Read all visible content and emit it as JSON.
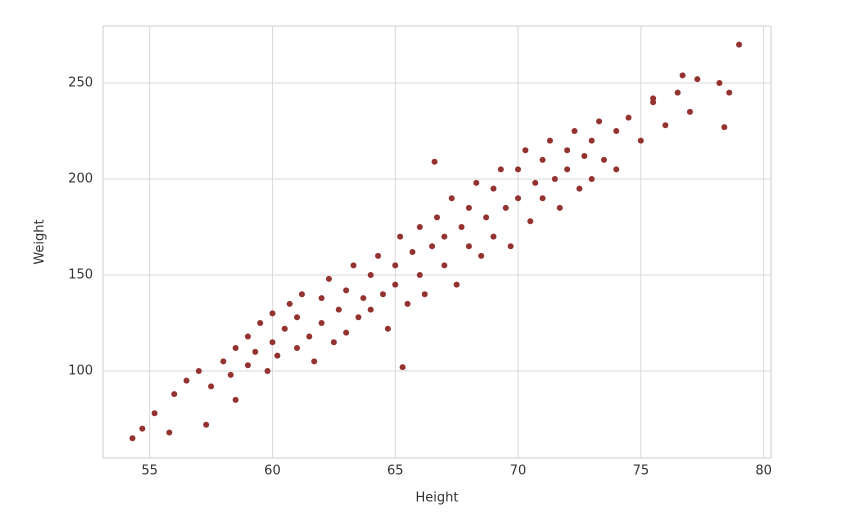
{
  "chart_data": {
    "type": "scatter",
    "x_label": "Height",
    "y_label": "Weight",
    "color": "#943230",
    "grid": true,
    "xlim": [
      53.1,
      80.3
    ],
    "ylim": [
      54.7,
      279.7
    ],
    "xticks": [
      55,
      60,
      65,
      70,
      75,
      80
    ],
    "yticks": [
      100,
      150,
      200,
      250
    ],
    "x": [
      56.5,
      57,
      57.5,
      58,
      58.3,
      58.5,
      59,
      59,
      59.3,
      59.5,
      59.8,
      60,
      60,
      60.2,
      60.5,
      60.7,
      61,
      61,
      61.2,
      61.5,
      61.7,
      62,
      62,
      62.3,
      62.5,
      62.7,
      63,
      63,
      63.3,
      63.5,
      63.7,
      64,
      64,
      64.3,
      64.5,
      64.7,
      65,
      65,
      65.2,
      65.5,
      65.7,
      66,
      66,
      66.2,
      66.5,
      66.7,
      67,
      67,
      67.3,
      67.5,
      67.7,
      68,
      68,
      68.3,
      68.5,
      68.7,
      69,
      69,
      69.3,
      69.5,
      69.7,
      70,
      70,
      70.3,
      70.5,
      70.7,
      71,
      71,
      71.3,
      71.5,
      71.7,
      72,
      72,
      72.3,
      72.5,
      72.7,
      73,
      73,
      73.3,
      73.5,
      74,
      74,
      74.5,
      75,
      75.5,
      76,
      76.5,
      77,
      54.3,
      54.7,
      55.2,
      55.8,
      56,
      57.3,
      65.3,
      66.6,
      79,
      78.6,
      78.4,
      78.2,
      77.3,
      76.7,
      75.5,
      58.5
    ],
    "values": [
      95,
      100,
      92,
      105,
      98,
      112,
      103,
      118,
      110,
      125,
      100,
      115,
      130,
      108,
      122,
      135,
      112,
      128,
      140,
      118,
      105,
      125,
      138,
      148,
      115,
      132,
      142,
      120,
      155,
      128,
      138,
      150,
      132,
      160,
      140,
      122,
      155,
      145,
      170,
      135,
      162,
      150,
      175,
      140,
      165,
      180,
      155,
      170,
      190,
      145,
      175,
      165,
      185,
      198,
      160,
      180,
      195,
      170,
      205,
      185,
      165,
      190,
      205,
      215,
      178,
      198,
      210,
      190,
      220,
      200,
      185,
      215,
      205,
      225,
      195,
      212,
      220,
      200,
      230,
      210,
      225,
      205,
      232,
      220,
      240,
      228,
      245,
      235,
      65,
      70,
      78,
      68,
      88,
      72,
      102,
      209,
      270,
      245,
      227,
      250,
      252,
      254,
      242,
      85
    ]
  }
}
